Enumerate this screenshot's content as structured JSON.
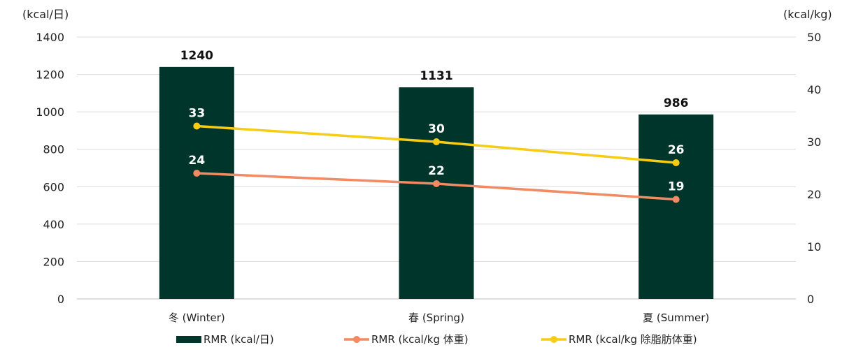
{
  "chart_data": {
    "type": "bar",
    "categories": [
      "冬 (Winter)",
      "春 (Spring)",
      "夏 (Summer)"
    ],
    "left_axis": {
      "unit_label": "(kcal/日)",
      "ylim": [
        0,
        1400
      ],
      "ticks": [
        "0",
        "200",
        "400",
        "600",
        "800",
        "1000",
        "1200",
        "1400"
      ]
    },
    "right_axis": {
      "unit_label": "(kcal/kg)",
      "ylim": [
        0,
        50
      ],
      "ticks": [
        "0",
        "10",
        "20",
        "30",
        "40",
        "50"
      ]
    },
    "grid": true,
    "legend_position": "bottom",
    "series": [
      {
        "name": "RMR (kcal/日)",
        "type": "bar",
        "axis": "left",
        "color": "#00352B",
        "values": [
          1240,
          1131,
          986
        ],
        "labels": [
          "1240",
          "1131",
          "986"
        ]
      },
      {
        "name": "RMR (kcal/kg 体重)",
        "type": "line",
        "axis": "right",
        "color": "#F28A64",
        "values": [
          24,
          22,
          19
        ],
        "labels": [
          "24",
          "22",
          "19"
        ]
      },
      {
        "name": "RMR (kcal/kg 除脂肪体重)",
        "type": "line",
        "axis": "right",
        "color": "#F7CC14",
        "values": [
          33,
          30,
          26
        ],
        "labels": [
          "33",
          "30",
          "26"
        ]
      }
    ]
  }
}
